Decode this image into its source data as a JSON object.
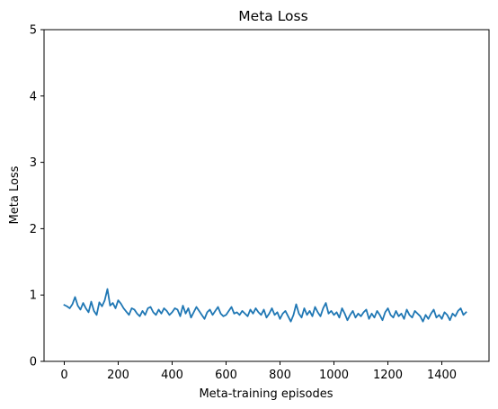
{
  "chart_data": {
    "type": "line",
    "title": "Meta Loss",
    "xlabel": "Meta-training episodes",
    "ylabel": "Meta Loss",
    "xlim": [
      -75,
      1575
    ],
    "ylim": [
      0,
      5
    ],
    "xticks": [
      0,
      200,
      400,
      600,
      800,
      1000,
      1200,
      1400
    ],
    "xtick_labels": [
      "0",
      "200",
      "400",
      "600",
      "800",
      "1000",
      "1200",
      "1400"
    ],
    "yticks": [
      0,
      1,
      2,
      3,
      4,
      5
    ],
    "ytick_labels": [
      "0",
      "1",
      "2",
      "3",
      "4",
      "5"
    ],
    "grid": false,
    "legend": "none",
    "series": [
      {
        "color": "#1f77b4",
        "x": [
          0,
          10,
          20,
          30,
          40,
          50,
          60,
          70,
          80,
          90,
          100,
          110,
          120,
          130,
          140,
          150,
          160,
          170,
          180,
          190,
          200,
          210,
          220,
          230,
          240,
          250,
          260,
          270,
          280,
          290,
          300,
          310,
          320,
          330,
          340,
          350,
          360,
          370,
          380,
          390,
          400,
          410,
          420,
          430,
          440,
          450,
          460,
          470,
          480,
          490,
          500,
          510,
          520,
          530,
          540,
          550,
          560,
          570,
          580,
          590,
          600,
          610,
          620,
          630,
          640,
          650,
          660,
          670,
          680,
          690,
          700,
          710,
          720,
          730,
          740,
          750,
          760,
          770,
          780,
          790,
          800,
          810,
          820,
          830,
          840,
          850,
          860,
          870,
          880,
          890,
          900,
          910,
          920,
          930,
          940,
          950,
          960,
          970,
          980,
          990,
          1000,
          1010,
          1020,
          1030,
          1040,
          1050,
          1060,
          1070,
          1080,
          1090,
          1100,
          1110,
          1120,
          1130,
          1140,
          1150,
          1160,
          1170,
          1180,
          1190,
          1200,
          1210,
          1220,
          1230,
          1240,
          1250,
          1260,
          1270,
          1280,
          1290,
          1300,
          1310,
          1320,
          1330,
          1340,
          1350,
          1360,
          1370,
          1380,
          1390,
          1400,
          1410,
          1420,
          1430,
          1440,
          1450,
          1460,
          1470,
          1480,
          1490
        ],
        "y": [
          0.85,
          0.83,
          0.8,
          0.86,
          0.97,
          0.84,
          0.78,
          0.88,
          0.8,
          0.74,
          0.9,
          0.76,
          0.7,
          0.89,
          0.83,
          0.92,
          1.09,
          0.84,
          0.88,
          0.8,
          0.92,
          0.87,
          0.8,
          0.75,
          0.7,
          0.8,
          0.78,
          0.72,
          0.68,
          0.76,
          0.7,
          0.8,
          0.82,
          0.74,
          0.7,
          0.78,
          0.72,
          0.8,
          0.76,
          0.7,
          0.74,
          0.8,
          0.78,
          0.68,
          0.84,
          0.72,
          0.8,
          0.66,
          0.74,
          0.82,
          0.76,
          0.7,
          0.64,
          0.74,
          0.78,
          0.7,
          0.76,
          0.82,
          0.72,
          0.68,
          0.7,
          0.76,
          0.82,
          0.72,
          0.74,
          0.7,
          0.76,
          0.72,
          0.68,
          0.78,
          0.72,
          0.8,
          0.74,
          0.7,
          0.78,
          0.66,
          0.72,
          0.8,
          0.7,
          0.74,
          0.64,
          0.72,
          0.76,
          0.68,
          0.6,
          0.7,
          0.86,
          0.72,
          0.66,
          0.8,
          0.7,
          0.76,
          0.68,
          0.82,
          0.74,
          0.68,
          0.8,
          0.88,
          0.72,
          0.76,
          0.7,
          0.74,
          0.66,
          0.8,
          0.72,
          0.62,
          0.7,
          0.76,
          0.66,
          0.72,
          0.68,
          0.74,
          0.78,
          0.64,
          0.72,
          0.66,
          0.76,
          0.7,
          0.62,
          0.74,
          0.8,
          0.7,
          0.66,
          0.76,
          0.68,
          0.72,
          0.64,
          0.78,
          0.7,
          0.66,
          0.76,
          0.72,
          0.68,
          0.6,
          0.7,
          0.64,
          0.72,
          0.78,
          0.66,
          0.7,
          0.64,
          0.74,
          0.7,
          0.62,
          0.72,
          0.68,
          0.76,
          0.8,
          0.7,
          0.74
        ]
      }
    ]
  }
}
